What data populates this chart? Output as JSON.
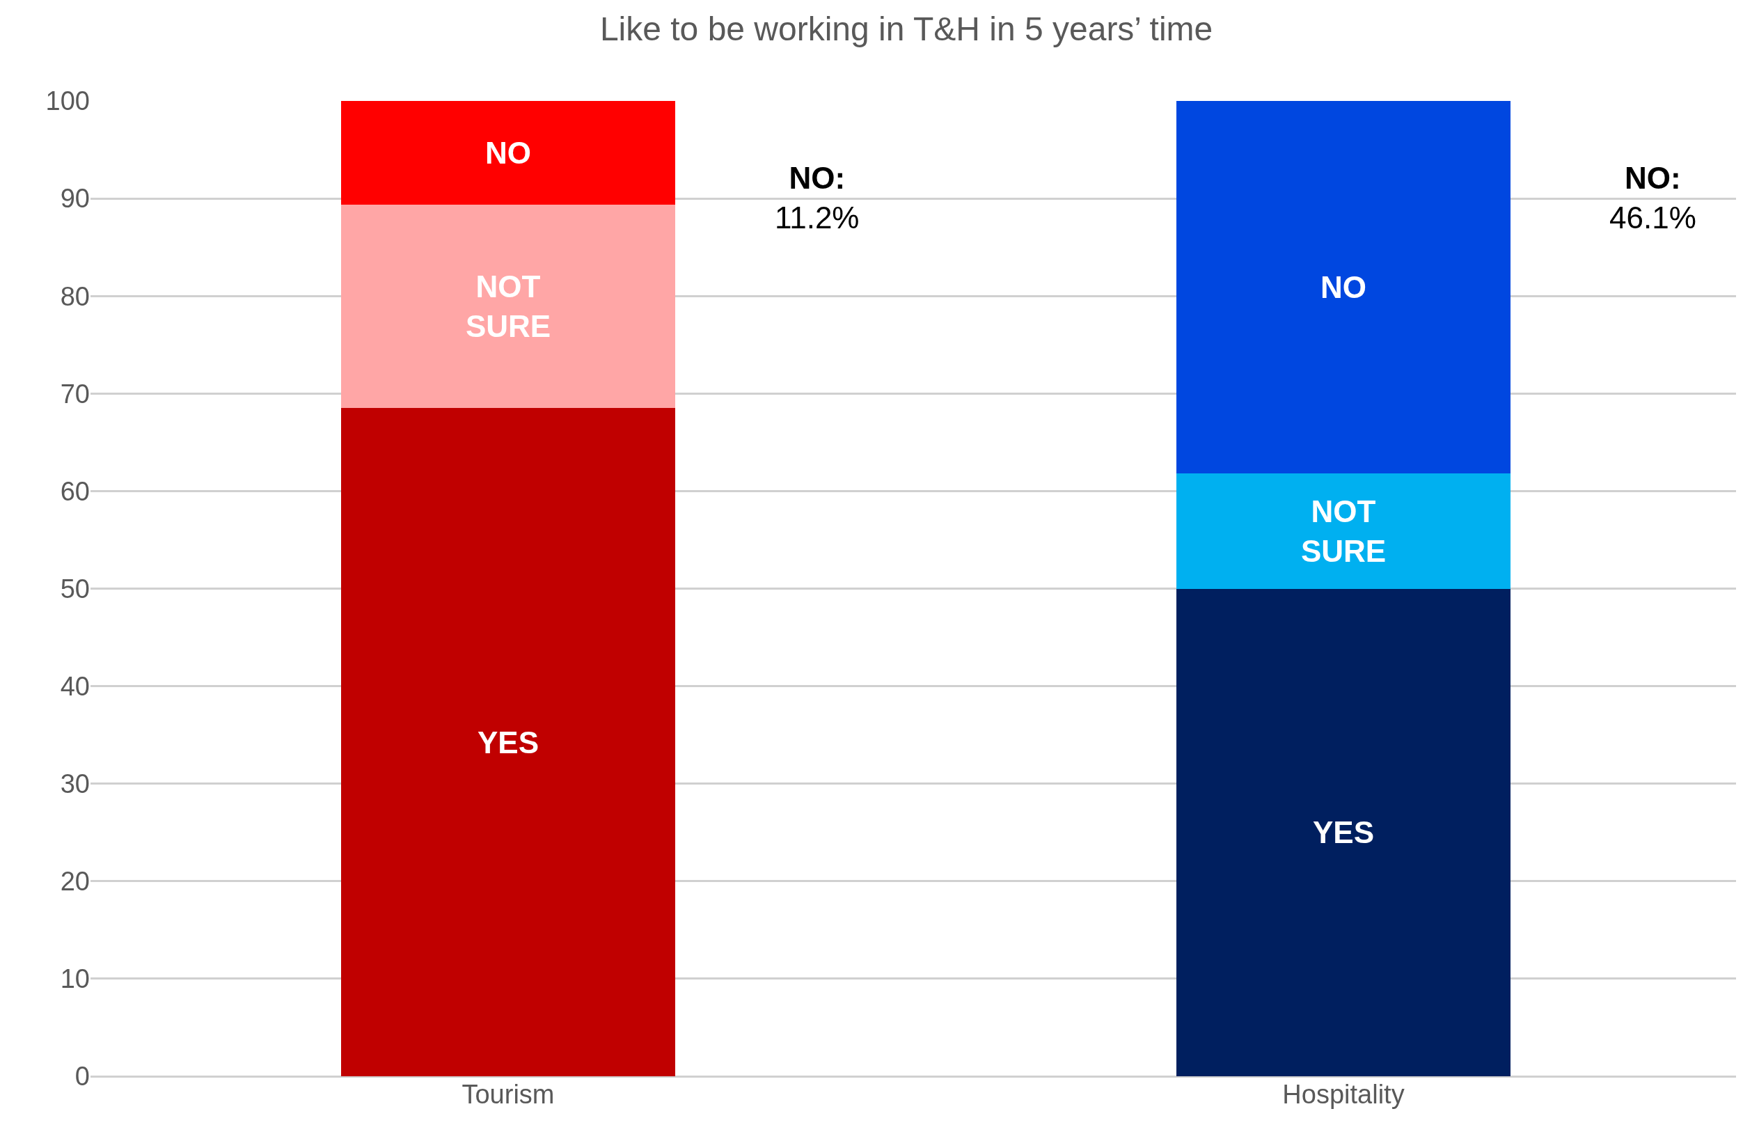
{
  "chart_data": {
    "type": "bar",
    "title": "Like to be working in T&H in 5 years’ time",
    "categories": [
      "Tourism",
      "Hospitality"
    ],
    "stacked": true,
    "series": [
      {
        "colors": [
          "#c00000",
          "#001f5f"
        ],
        "values": [
          68.5,
          50
        ],
        "value_labels": [
          "YES",
          "YES"
        ]
      },
      {
        "colors": [
          "#ffa6a6",
          "#00b0f0"
        ],
        "values": [
          20.9,
          11.8
        ],
        "value_labels": [
          "NOT\nSURE",
          "NOT\nSURE"
        ]
      },
      {
        "colors": [
          "#ff0000",
          "#0047e0"
        ],
        "values": [
          10.6,
          38.2
        ],
        "value_labels": [
          "NO",
          "NO"
        ]
      }
    ],
    "ylim": [
      0,
      100
    ],
    "yticks": [
      0,
      10,
      20,
      30,
      40,
      50,
      60,
      70,
      80,
      90,
      100
    ],
    "grid": "y",
    "legend": false,
    "annotations": [
      "NO:\n11.2%",
      "NO:\n46.1%"
    ]
  }
}
